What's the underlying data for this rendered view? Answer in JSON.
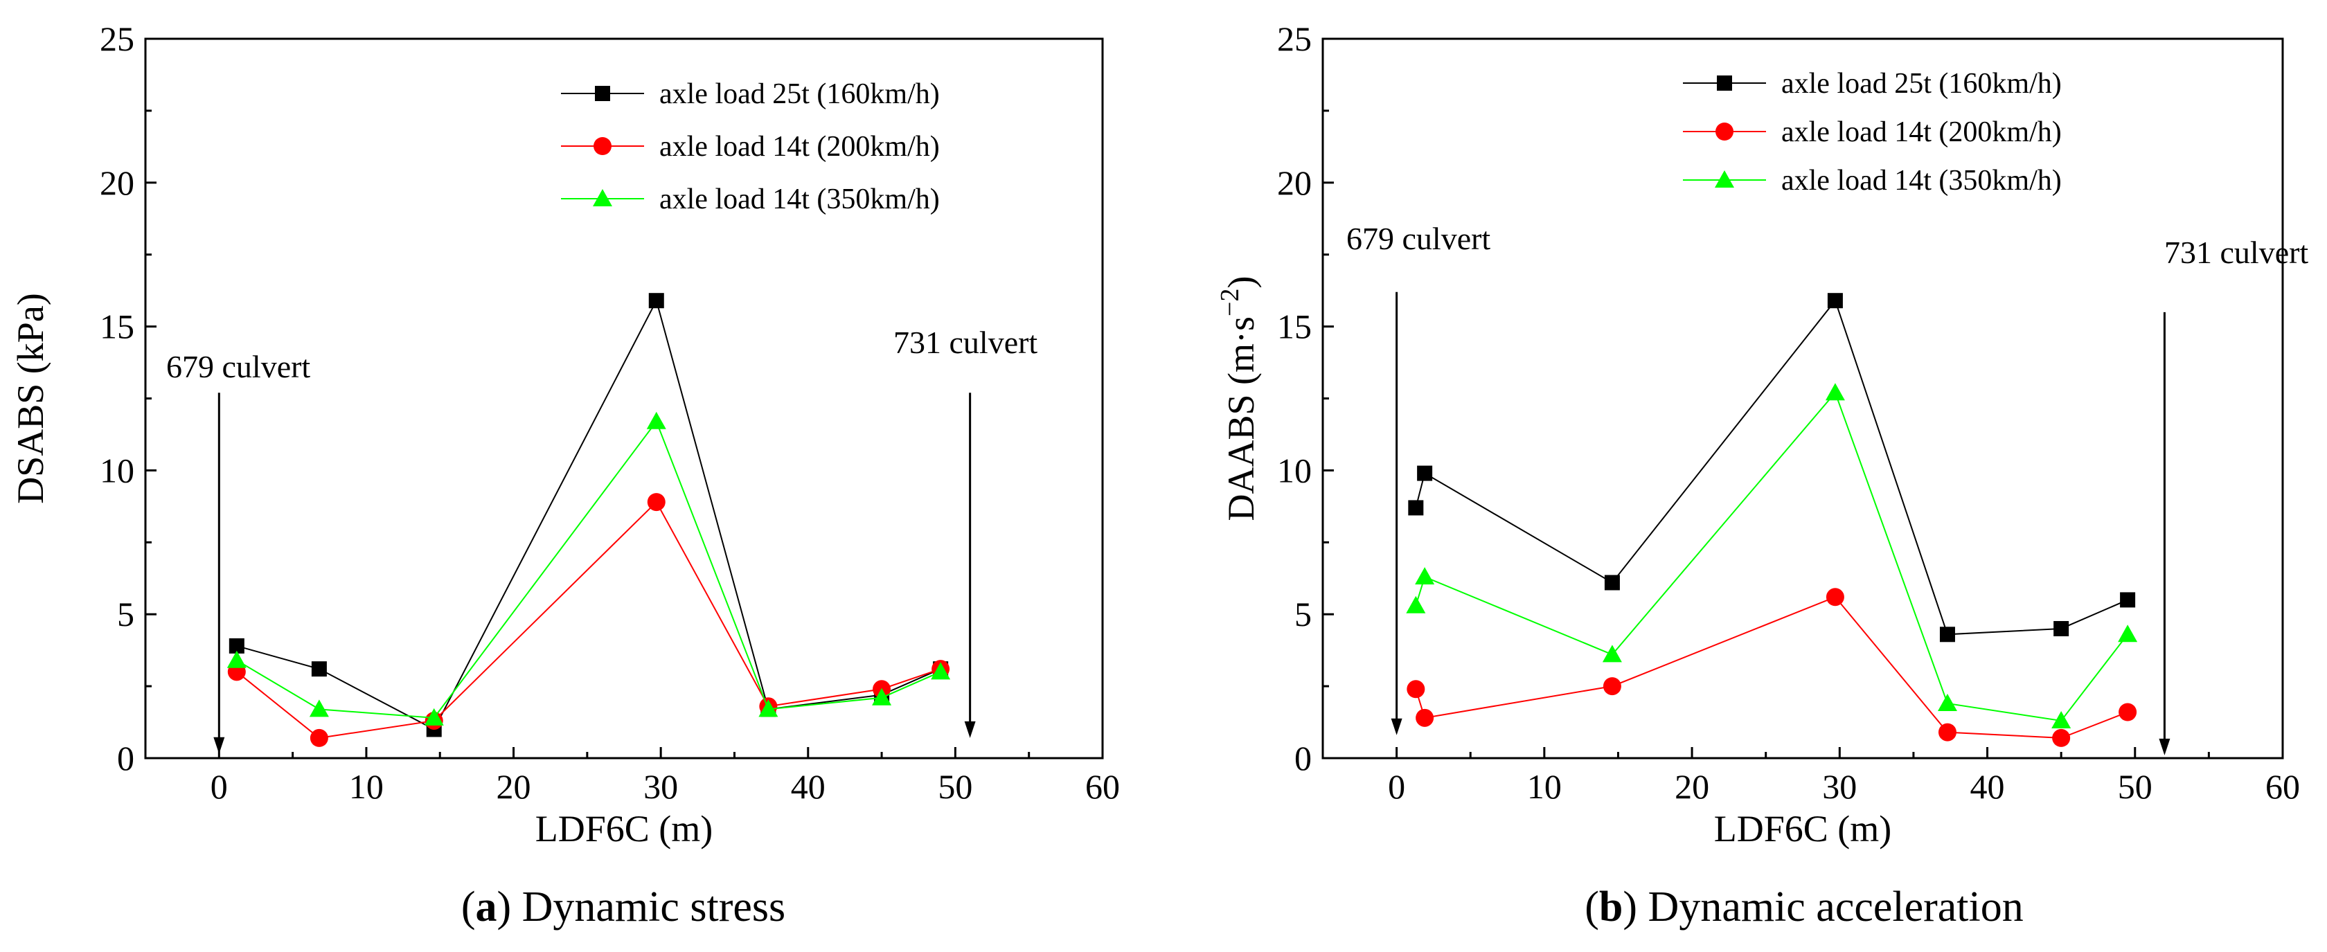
{
  "chart_data": [
    {
      "type": "line",
      "caption_letter": "a",
      "caption_text": "Dynamic stress",
      "xlabel": "LDF6C (m)",
      "ylabel": "DSABS (kPa)",
      "xlim": [
        -5,
        60
      ],
      "ylim": [
        0,
        25
      ],
      "xticks": [
        0,
        10,
        20,
        30,
        40,
        50,
        60
      ],
      "yticks": [
        0,
        5,
        10,
        15,
        20,
        25
      ],
      "grid": false,
      "legend_position": "top-right",
      "series": [
        {
          "name": "axle load 25t (160km/h)",
          "color": "#000000",
          "marker": "square",
          "x": [
            1.2,
            6.8,
            14.6,
            29.7,
            37.3,
            45.0,
            49.0
          ],
          "y": [
            3.9,
            3.1,
            1.0,
            15.9,
            1.7,
            2.2,
            3.1
          ]
        },
        {
          "name": "axle load 14t (200km/h)",
          "color": "#ff0000",
          "marker": "circle",
          "x": [
            1.2,
            6.8,
            14.6,
            29.7,
            37.3,
            45.0,
            49.0
          ],
          "y": [
            3.0,
            0.7,
            1.3,
            8.9,
            1.8,
            2.4,
            3.1
          ]
        },
        {
          "name": "axle load 14t (350km/h)",
          "color": "#00ff00",
          "marker": "triangle",
          "x": [
            1.2,
            6.8,
            14.6,
            29.7,
            37.3,
            45.0,
            49.0
          ],
          "y": [
            3.4,
            1.7,
            1.4,
            11.7,
            1.7,
            2.1,
            3.0
          ]
        }
      ],
      "annotations": [
        {
          "text": "679 culvert",
          "arrow_x": 0,
          "arrow_from_y": 12.7,
          "arrow_to_y": 0.15
        },
        {
          "text": "731 culvert",
          "arrow_x": 51,
          "arrow_from_y": 12.7,
          "arrow_to_y": 0.7
        }
      ]
    },
    {
      "type": "line",
      "caption_letter": "b",
      "caption_text": "Dynamic acceleration",
      "xlabel": "LDF6C (m)",
      "ylabel": "DAABS (m·s",
      "ylabel_superscript": "−2",
      "ylabel_close": ")",
      "xlim": [
        -5,
        60
      ],
      "ylim": [
        0,
        25
      ],
      "xticks": [
        0,
        10,
        20,
        30,
        40,
        50,
        60
      ],
      "yticks": [
        0,
        5,
        10,
        15,
        20,
        25
      ],
      "grid": false,
      "legend_position": "top-right",
      "series": [
        {
          "name": "axle load 25t (160km/h)",
          "color": "#000000",
          "marker": "square",
          "x": [
            1.3,
            1.9,
            14.6,
            29.7,
            37.3,
            45.0,
            49.5
          ],
          "y": [
            8.7,
            9.9,
            6.1,
            15.9,
            4.3,
            4.5,
            5.5
          ]
        },
        {
          "name": "axle load 14t (200km/h)",
          "color": "#ff0000",
          "marker": "circle",
          "x": [
            1.3,
            1.9,
            14.6,
            29.7,
            37.3,
            45.0,
            49.5
          ],
          "y": [
            2.4,
            1.4,
            2.5,
            5.6,
            0.9,
            0.7,
            1.6
          ]
        },
        {
          "name": "axle load 14t (350km/h)",
          "color": "#00ff00",
          "marker": "triangle",
          "x": [
            1.3,
            1.9,
            14.6,
            29.7,
            37.3,
            45.0,
            49.5
          ],
          "y": [
            5.3,
            6.3,
            3.6,
            12.7,
            1.9,
            1.3,
            4.3
          ]
        }
      ],
      "annotations": [
        {
          "text": "679 culvert",
          "arrow_x": 0,
          "arrow_from_y": 16.2,
          "arrow_to_y": 0.8
        },
        {
          "text": "731 culvert",
          "arrow_x": 52,
          "arrow_from_y": 15.5,
          "arrow_to_y": 0.1
        }
      ]
    }
  ]
}
